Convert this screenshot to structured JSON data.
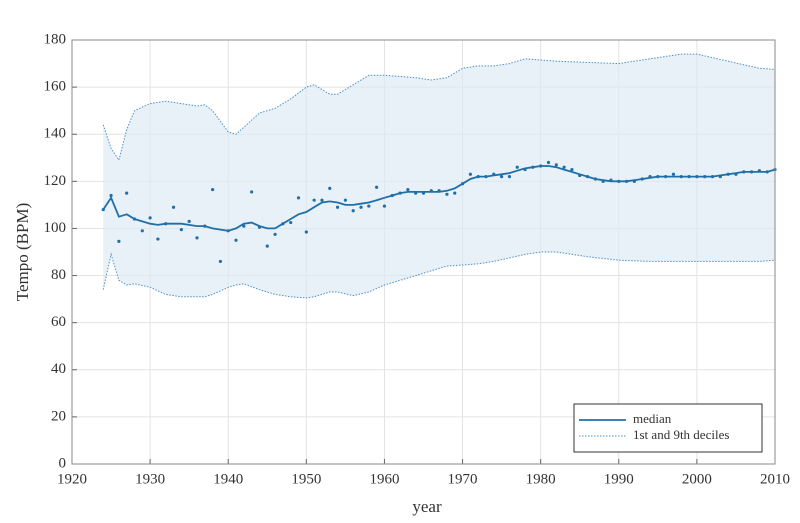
{
  "chart_data": {
    "type": "line",
    "xlabel": "year",
    "ylabel": "Tempo (BPM)",
    "xlim": [
      1920,
      2010
    ],
    "xticks": [
      1920,
      1930,
      1940,
      1950,
      1960,
      1970,
      1980,
      1990,
      2000,
      2010
    ],
    "ylim": [
      0,
      180
    ],
    "yticks": [
      0,
      20,
      40,
      60,
      80,
      100,
      120,
      140,
      160,
      180
    ],
    "grid": true,
    "legend": "lower right",
    "series": [
      {
        "name": "median",
        "type": "line",
        "color": "#1f6fa8",
        "x": [
          1924,
          1925,
          1926,
          1927,
          1928,
          1929,
          1930,
          1931,
          1932,
          1933,
          1934,
          1935,
          1936,
          1937,
          1938,
          1939,
          1940,
          1941,
          1942,
          1943,
          1944,
          1945,
          1946,
          1947,
          1948,
          1949,
          1950,
          1951,
          1952,
          1953,
          1954,
          1955,
          1956,
          1957,
          1958,
          1959,
          1960,
          1961,
          1962,
          1963,
          1964,
          1965,
          1966,
          1967,
          1968,
          1969,
          1970,
          1971,
          1972,
          1973,
          1974,
          1975,
          1976,
          1977,
          1978,
          1979,
          1980,
          1981,
          1982,
          1983,
          1984,
          1985,
          1986,
          1987,
          1988,
          1989,
          1990,
          1991,
          1992,
          1993,
          1994,
          1995,
          1996,
          1997,
          1998,
          1999,
          2000,
          2001,
          2002,
          2003,
          2004,
          2005,
          2006,
          2007,
          2008,
          2009,
          2010
        ],
        "values": [
          108,
          113,
          105,
          106,
          104,
          103,
          102,
          101.5,
          102,
          102,
          102,
          101.5,
          101,
          101,
          100,
          99.5,
          99,
          100,
          102,
          102.5,
          101,
          100,
          100,
          102,
          104,
          106,
          107,
          109,
          111,
          111.5,
          111,
          110,
          110,
          110.5,
          111,
          112,
          113,
          114,
          115,
          115.5,
          115.5,
          115.5,
          115.5,
          115.5,
          116,
          117,
          119,
          121,
          122,
          122,
          122.5,
          123,
          123.5,
          124.5,
          125.5,
          126,
          126.5,
          126.5,
          126,
          125,
          124,
          123,
          122,
          121,
          120.5,
          120,
          120,
          120,
          120.5,
          121,
          121.5,
          122,
          122,
          122,
          122,
          122,
          122,
          122,
          122,
          122.5,
          123,
          123.5,
          124,
          124,
          124,
          124,
          125
        ]
      },
      {
        "name": "1st and 9th deciles",
        "type": "band",
        "color": "#4a90c8",
        "fill": "#dce8f5",
        "x": [
          1924,
          1925,
          1926,
          1927,
          1928,
          1930,
          1932,
          1934,
          1936,
          1937,
          1938,
          1940,
          1941,
          1942,
          1944,
          1946,
          1948,
          1950,
          1951,
          1953,
          1954,
          1956,
          1958,
          1960,
          1962,
          1964,
          1966,
          1968,
          1970,
          1972,
          1974,
          1976,
          1978,
          1980,
          1982,
          1986,
          1990,
          1994,
          1998,
          2000,
          2004,
          2008,
          2010
        ],
        "upper": [
          144,
          134,
          129,
          142,
          150,
          153,
          154,
          153,
          152,
          152.5,
          150,
          141,
          140,
          143,
          149,
          151,
          155,
          160,
          161,
          157,
          157,
          161,
          165,
          165,
          164.5,
          164,
          163,
          164,
          168,
          169,
          169,
          170,
          172,
          171.5,
          171,
          170.5,
          170,
          172,
          174,
          174,
          171,
          168,
          167.5
        ],
        "lower": [
          74,
          89,
          78,
          76,
          76.5,
          75,
          72,
          71,
          71,
          71,
          72,
          75,
          76,
          76.5,
          74,
          72,
          71,
          70.5,
          71,
          73,
          73,
          71.5,
          73,
          76,
          78,
          80,
          82,
          84,
          84.5,
          85,
          86,
          87.5,
          89,
          90,
          90,
          88,
          86.5,
          86,
          86,
          86,
          86,
          86,
          86.5
        ]
      },
      {
        "type": "scatter",
        "color": "#1f6fa8",
        "x": [
          1924,
          1925,
          1926,
          1927,
          1928,
          1929,
          1930,
          1931,
          1932,
          1933,
          1934,
          1935,
          1936,
          1937,
          1938,
          1939,
          1940,
          1941,
          1942,
          1943,
          1944,
          1945,
          1946,
          1947,
          1948,
          1949,
          1950,
          1951,
          1952,
          1953,
          1954,
          1955,
          1956,
          1957,
          1958,
          1959,
          1960,
          1961,
          1962,
          1963,
          1964,
          1965,
          1966,
          1967,
          1968,
          1969,
          1970,
          1971,
          1972,
          1973,
          1974,
          1975,
          1976,
          1977,
          1978,
          1979,
          1980,
          1981,
          1982,
          1983,
          1984,
          1985,
          1986,
          1987,
          1988,
          1989,
          1990,
          1991,
          1992,
          1993,
          1994,
          1995,
          1996,
          1997,
          1998,
          1999,
          2000,
          2001,
          2002,
          2003,
          2004,
          2005,
          2006,
          2007,
          2008,
          2009,
          2010
        ],
        "values": [
          108,
          114,
          94.5,
          115,
          104,
          99,
          104.5,
          95.5,
          102,
          109,
          99.5,
          103,
          96,
          101,
          116.5,
          86,
          99,
          95,
          101,
          115.5,
          100.5,
          92.5,
          97.5,
          102,
          102.5,
          113,
          98.5,
          112,
          112,
          117,
          109,
          112,
          107.5,
          109,
          109.5,
          117.5,
          109.5,
          114,
          115,
          116.5,
          115,
          115,
          116,
          116,
          114.5,
          115,
          119,
          123,
          122,
          122,
          123,
          122,
          122,
          126,
          125,
          126,
          126.5,
          128,
          127,
          126,
          125,
          122.5,
          122,
          121,
          120,
          120.5,
          120,
          120,
          120,
          121,
          122,
          122,
          122,
          123,
          122,
          122,
          122,
          122,
          122,
          122,
          123,
          123,
          124,
          124,
          124.5,
          124,
          125
        ]
      }
    ]
  }
}
